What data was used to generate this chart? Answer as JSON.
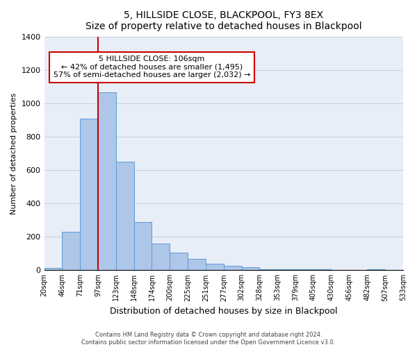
{
  "title": "5, HILLSIDE CLOSE, BLACKPOOL, FY3 8EX",
  "subtitle": "Size of property relative to detached houses in Blackpool",
  "xlabel": "Distribution of detached houses by size in Blackpool",
  "ylabel": "Number of detached properties",
  "bar_values": [
    15,
    230,
    910,
    1070,
    650,
    290,
    160,
    105,
    70,
    40,
    25,
    20,
    5,
    5,
    5,
    5,
    0,
    0,
    5,
    0
  ],
  "bin_labels": [
    "20sqm",
    "46sqm",
    "71sqm",
    "97sqm",
    "123sqm",
    "148sqm",
    "174sqm",
    "200sqm",
    "225sqm",
    "251sqm",
    "277sqm",
    "302sqm",
    "328sqm",
    "353sqm",
    "379sqm",
    "405sqm",
    "430sqm",
    "456sqm",
    "482sqm",
    "507sqm",
    "533sqm"
  ],
  "bar_color": "#aec6e8",
  "bar_edgecolor": "#5b9bd5",
  "vline_color": "#cc0000",
  "vline_pos": 3,
  "ylim": [
    0,
    1400
  ],
  "yticks": [
    0,
    200,
    400,
    600,
    800,
    1000,
    1200,
    1400
  ],
  "annotation_title": "5 HILLSIDE CLOSE: 106sqm",
  "annotation_line1": "← 42% of detached houses are smaller (1,495)",
  "annotation_line2": "57% of semi-detached houses are larger (2,032) →",
  "footer1": "Contains HM Land Registry data © Crown copyright and database right 2024.",
  "footer2": "Contains public sector information licensed under the Open Government Licence v3.0.",
  "background_color": "#e8eef8"
}
